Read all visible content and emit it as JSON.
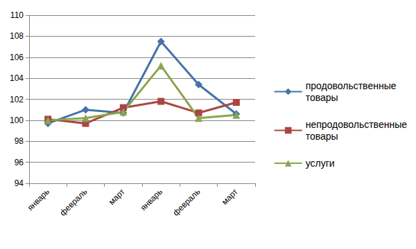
{
  "chart_data": {
    "type": "line",
    "categories": [
      "январь",
      "февраль",
      "март",
      "январь",
      "февраль",
      "март"
    ],
    "series": [
      {
        "name": "продовольственные товары",
        "color": "#4572a7",
        "marker": "diamond",
        "values": [
          99.7,
          101.0,
          100.7,
          107.5,
          103.4,
          100.6
        ]
      },
      {
        "name": "непродовольственные товары",
        "color": "#aa4643",
        "marker": "square",
        "values": [
          100.1,
          99.7,
          101.2,
          101.8,
          100.7,
          101.7
        ]
      },
      {
        "name": "услуги",
        "color": "#89a54e",
        "marker": "triangle",
        "values": [
          100.0,
          100.2,
          100.8,
          105.2,
          100.2,
          100.5
        ]
      }
    ],
    "ylim": [
      94,
      110
    ],
    "yticks": [
      94,
      96,
      98,
      100,
      102,
      104,
      106,
      108,
      110
    ],
    "grid": true,
    "legend": "right"
  }
}
